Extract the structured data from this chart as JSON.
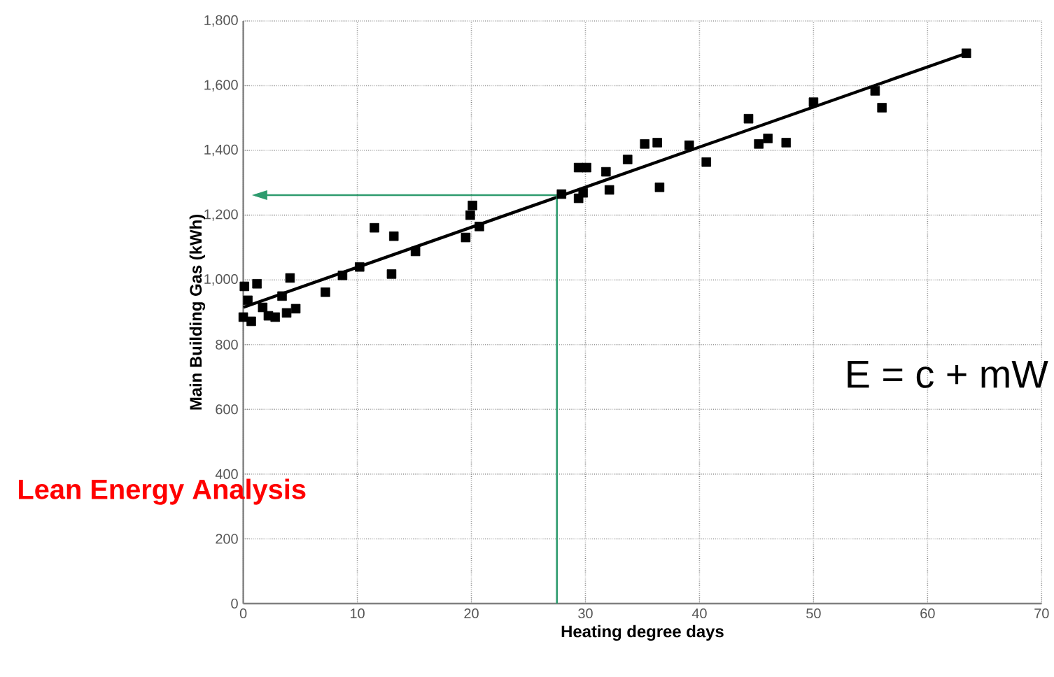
{
  "chart_data": {
    "type": "scatter",
    "xlabel": "Heating degree days",
    "ylabel": "Main Building Gas (kWh)",
    "xlim": [
      0,
      70
    ],
    "xticks": [
      0,
      10,
      20,
      30,
      40,
      50,
      60,
      70
    ],
    "ylim": [
      0,
      1800
    ],
    "yticks": [
      0,
      200,
      400,
      600,
      800,
      {
        "value": 1000,
        "label": "1,000"
      },
      {
        "value": 1200,
        "label": "1,200"
      },
      {
        "value": 1400,
        "label": "1,400"
      },
      {
        "value": 1600,
        "label": "1,600"
      },
      {
        "value": 1800,
        "label": "1,800"
      }
    ],
    "grid": true,
    "marker": "square",
    "series": [
      {
        "color": "#000000",
        "x": [
          0.1,
          1.2,
          4.1,
          0.4,
          3.4,
          7.2,
          8.7,
          10.2,
          11.5,
          13.2,
          13.0,
          15.1,
          19.5,
          19.9,
          20.1,
          20.7,
          0.0,
          0.7,
          1.7,
          2.2,
          2.8,
          3.8,
          4.6,
          27.9,
          29.4,
          29.8,
          29.4,
          30.1,
          31.8,
          32.1,
          33.7,
          35.2,
          36.3,
          36.5,
          39.1,
          40.6,
          44.3,
          45.2,
          46.0,
          47.6,
          50.0,
          55.4,
          56.0,
          63.4
        ],
        "values": [
          980,
          988,
          1006,
          937,
          950,
          962,
          1014,
          1040,
          1161,
          1135,
          1018,
          1088,
          1131,
          1200,
          1230,
          1165,
          885,
          872,
          915,
          889,
          885,
          898,
          911,
          1265,
          1252,
          1269,
          1347,
          1347,
          1334,
          1278,
          1372,
          1420,
          1424,
          1286,
          1416,
          1364,
          1498,
          1420,
          1437,
          1424,
          1549,
          1584,
          1532,
          1700
        ]
      },
      {
        "type": "line",
        "marker": "none",
        "color": "#000000",
        "x": [
          0,
          63.4
        ],
        "values": [
          915,
          1700
        ]
      },
      {
        "type": "line",
        "marker": "none",
        "color": "#2e9b6e",
        "x": [
          27.5,
          27.5,
          1
        ],
        "values": [
          0,
          1262,
          1262
        ]
      }
    ],
    "annotations": [
      "E = c + mW",
      "Lean Energy Analysis"
    ]
  }
}
